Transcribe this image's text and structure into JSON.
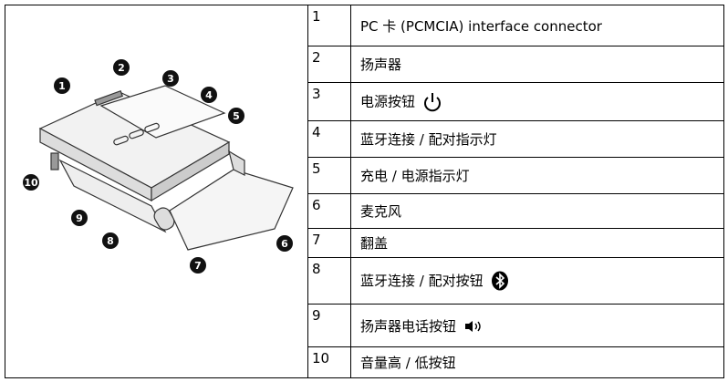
{
  "illustration": {
    "callouts": [
      "1",
      "2",
      "3",
      "4",
      "5",
      "6",
      "7",
      "8",
      "9",
      "10"
    ]
  },
  "table": {
    "rows": [
      [
        "1",
        "PC 卡 (PCMCIA) interface connector"
      ],
      [
        "2",
        "扬声器"
      ],
      [
        "3",
        "电源按钮"
      ],
      [
        "4",
        "蓝牙连接 / 配对指示灯"
      ],
      [
        "5",
        "充电 / 电源指示灯"
      ],
      [
        "6",
        "麦克风"
      ],
      [
        "7",
        "翻盖"
      ],
      [
        "8",
        "蓝牙连接 / 配对按钮"
      ],
      [
        "9",
        "扬声器电话按钮"
      ],
      [
        "10",
        "音量高 / 低按钮"
      ]
    ]
  }
}
